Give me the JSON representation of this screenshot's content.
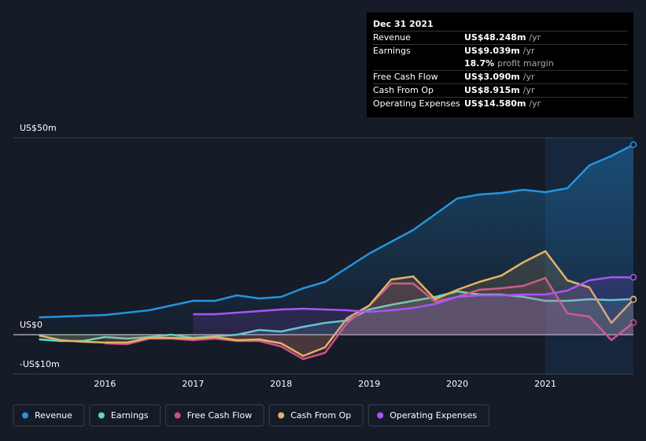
{
  "chart_data": {
    "type": "line",
    "x": [
      2015.25,
      2015.5,
      2015.75,
      2016.0,
      2016.25,
      2016.5,
      2016.75,
      2017.0,
      2017.25,
      2017.5,
      2017.75,
      2018.0,
      2018.25,
      2018.5,
      2018.75,
      2019.0,
      2019.25,
      2019.5,
      2019.75,
      2020.0,
      2020.25,
      2020.5,
      2020.75,
      2021.0,
      2021.25,
      2021.5,
      2021.75,
      2022.0
    ],
    "series": [
      {
        "name": "Revenue",
        "color": "#2394df",
        "values": [
          4.4,
          4.6,
          4.8,
          5.0,
          5.6,
          6.2,
          7.4,
          8.6,
          8.6,
          10,
          9.2,
          9.6,
          11.8,
          13.4,
          17,
          20.6,
          23.6,
          26.6,
          30.6,
          34.6,
          35.6,
          36,
          36.8,
          36.2,
          37.2,
          43,
          45.4,
          48.248
        ]
      },
      {
        "name": "Earnings",
        "color": "#5ad8c6",
        "values": [
          -1.2,
          -1.6,
          -1.6,
          -0.6,
          -1.0,
          -0.6,
          0,
          -0.8,
          -0.4,
          0,
          1.2,
          0.8,
          2,
          3,
          3.6,
          6.4,
          7.6,
          8.6,
          9.6,
          11,
          10.2,
          10.2,
          9.6,
          8.6,
          8.6,
          9,
          8.8,
          9.039
        ]
      },
      {
        "name": "Free Cash Flow",
        "color": "#cc4f8a",
        "values": [
          null,
          null,
          null,
          -2.2,
          -2.4,
          -1,
          -1,
          -1.4,
          -1,
          -1.6,
          -1.6,
          -3,
          -6.2,
          -4.6,
          3,
          7.4,
          13,
          13,
          8.4,
          9.6,
          11.4,
          11.8,
          12.4,
          14.4,
          5.4,
          4.6,
          -1.4,
          3.09
        ]
      },
      {
        "name": "Cash From Op",
        "color": "#e6b265",
        "values": [
          -0.2,
          -1.4,
          -1.8,
          -2,
          -2,
          -0.8,
          -0.8,
          -1,
          -0.6,
          -1.4,
          -1.2,
          -2.2,
          -5.4,
          -3.2,
          4.2,
          7.4,
          14,
          14.8,
          9,
          11.4,
          13.4,
          15,
          18.4,
          21.2,
          13.8,
          12,
          3,
          8.915
        ]
      },
      {
        "name": "Operating Expenses",
        "color": "#a855f7",
        "values": [
          null,
          null,
          null,
          null,
          null,
          null,
          null,
          5.2,
          5.2,
          5.6,
          6,
          6.4,
          6.6,
          6.4,
          6.2,
          5.8,
          6.2,
          6.8,
          7.8,
          9.6,
          10,
          10,
          10.2,
          10.2,
          11.2,
          13.8,
          14.6,
          14.58
        ]
      }
    ],
    "xlim": [
      2014.96,
      2022.0
    ],
    "xticks": [
      2016,
      2017,
      2018,
      2019,
      2020,
      2021
    ],
    "ylim": [
      -10,
      50
    ],
    "yticks": [
      {
        "value": 50,
        "label": "US$50m"
      },
      {
        "value": 0,
        "label": "US$0"
      },
      {
        "value": -10,
        "label": "-US$10m"
      }
    ],
    "grid": true
  },
  "tooltip": {
    "date": "Dec 31 2021",
    "rows": [
      {
        "label": "Revenue",
        "value": "US$48.248m",
        "unit": "/yr"
      },
      {
        "label": "Earnings",
        "value": "US$9.039m",
        "unit": "/yr"
      },
      {
        "label": "Free Cash Flow",
        "value": "US$3.090m",
        "unit": "/yr"
      },
      {
        "label": "Cash From Op",
        "value": "US$8.915m",
        "unit": "/yr"
      },
      {
        "label": "Operating Expenses",
        "value": "US$14.580m",
        "unit": "/yr"
      }
    ],
    "margin": {
      "value": "18.7%",
      "text": "profit margin"
    }
  }
}
